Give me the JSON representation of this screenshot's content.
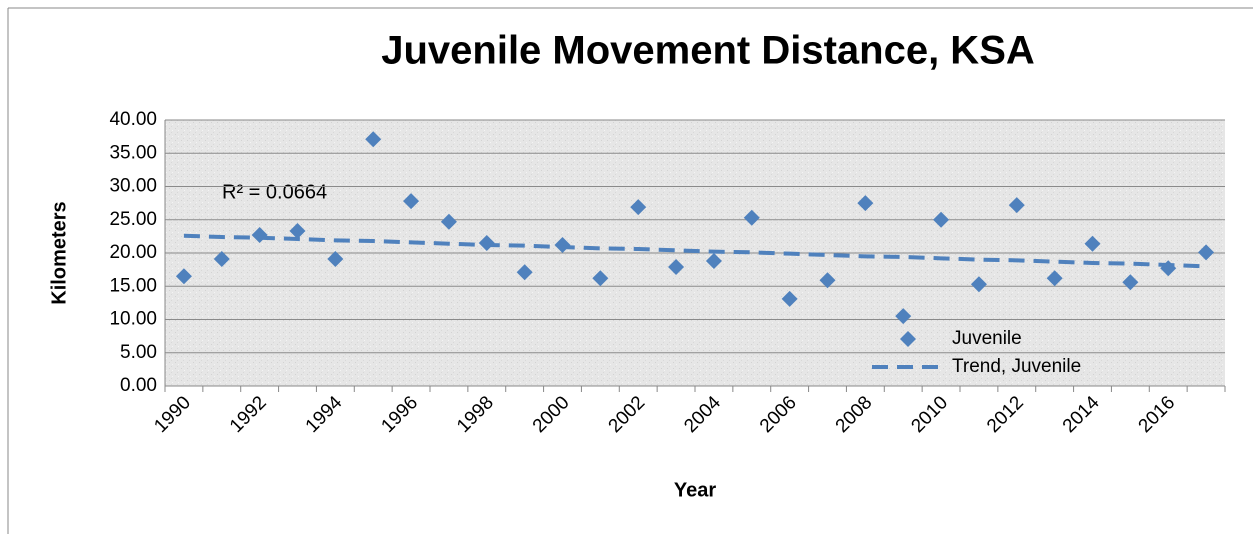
{
  "chart_data": {
    "type": "scatter",
    "title": "Juvenile Movement Distance, KSA",
    "x_label": "Year",
    "y_label": "Kilometers",
    "annotation": "R² = 0.0664",
    "categories": [
      "1990",
      null,
      "1992",
      null,
      "1994",
      null,
      "1996",
      null,
      "1998",
      null,
      "2000",
      null,
      "2002",
      null,
      "2004",
      null,
      "2006",
      null,
      "2008",
      null,
      "2010",
      null,
      "2012",
      null,
      "2014",
      null,
      "2016",
      null
    ],
    "series": [
      {
        "name": "Juvenile",
        "color": "#4f81bd",
        "style": "marker",
        "values": [
          16.5,
          19.1,
          22.7,
          23.3,
          19.1,
          37.1,
          27.8,
          24.7,
          21.5,
          17.1,
          21.2,
          16.2,
          26.9,
          17.9,
          18.8,
          25.3,
          13.1,
          15.9,
          27.5,
          10.5,
          25.0,
          15.3,
          27.2,
          16.2,
          21.4,
          15.6,
          17.7,
          20.1
        ]
      },
      {
        "name": "Trend, Juvenile",
        "color": "#4f81bd",
        "style": "dashed-line",
        "values": [
          22.6,
          22.4,
          22.3,
          22.1,
          21.9,
          21.8,
          21.6,
          21.4,
          21.2,
          21.1,
          20.9,
          20.7,
          20.6,
          20.4,
          20.2,
          20.1,
          19.9,
          19.7,
          19.5,
          19.4,
          19.2,
          19.0,
          18.9,
          18.7,
          18.5,
          18.4,
          18.2,
          18.0
        ]
      }
    ],
    "ylim": [
      0,
      40
    ],
    "yticks": [
      {
        "value": 0,
        "label": "0.00"
      },
      {
        "value": 5,
        "label": "5.00"
      },
      {
        "value": 10,
        "label": "10.00"
      },
      {
        "value": 15,
        "label": "15.00"
      },
      {
        "value": 20,
        "label": "20.00"
      },
      {
        "value": 25,
        "label": "25.00"
      },
      {
        "value": 30,
        "label": "30.00"
      },
      {
        "value": 35,
        "label": "35.00"
      },
      {
        "value": 40,
        "label": "40.00"
      }
    ],
    "grid": true,
    "legend": "lower right"
  }
}
